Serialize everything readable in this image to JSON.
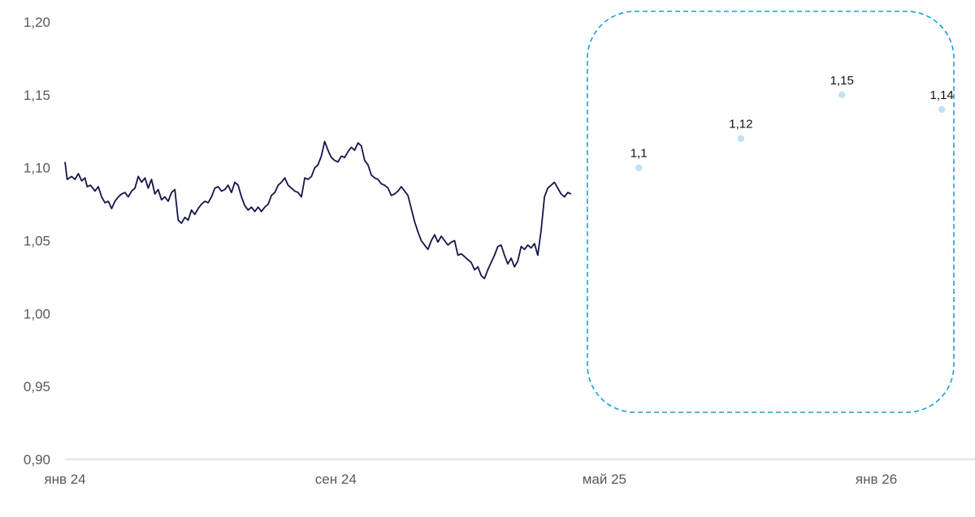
{
  "chart_data": {
    "type": "line",
    "title": "",
    "xlabel": "",
    "ylabel": "",
    "ylim": [
      0.9,
      1.2
    ],
    "y_ticks": [
      0.9,
      0.95,
      1.0,
      1.05,
      1.1,
      1.15,
      1.2
    ],
    "y_tick_labels": [
      "0,90",
      "0,95",
      "1,00",
      "1,05",
      "1,10",
      "1,15",
      "1,20"
    ],
    "x_range": [
      "2024-01-01",
      "2026-03-31"
    ],
    "x_ticks": [
      {
        "date": "2024-01-01",
        "label": "янв 24"
      },
      {
        "date": "2024-09-01",
        "label": "сен 24"
      },
      {
        "date": "2025-05-01",
        "label": "май 25"
      },
      {
        "date": "2026-01-01",
        "label": "янв 26"
      }
    ],
    "grid": false,
    "colors": {
      "history_line": "#15154a",
      "forecast_points": "#bfe3f3",
      "forecast_box": "#1a9fd8",
      "axis": "#c8c8c8",
      "tick_text": "#595959"
    },
    "series": [
      {
        "style": "line",
        "points": [
          [
            "2024-01-01",
            1.104
          ],
          [
            "2024-01-03",
            1.092
          ],
          [
            "2024-01-07",
            1.094
          ],
          [
            "2024-01-10",
            1.092
          ],
          [
            "2024-01-13",
            1.096
          ],
          [
            "2024-01-16",
            1.091
          ],
          [
            "2024-01-19",
            1.093
          ],
          [
            "2024-01-21",
            1.087
          ],
          [
            "2024-01-24",
            1.088
          ],
          [
            "2024-01-28",
            1.084
          ],
          [
            "2024-01-31",
            1.087
          ],
          [
            "2024-02-03",
            1.08
          ],
          [
            "2024-02-06",
            1.076
          ],
          [
            "2024-02-09",
            1.077
          ],
          [
            "2024-02-12",
            1.072
          ],
          [
            "2024-02-15",
            1.077
          ],
          [
            "2024-02-18",
            1.08
          ],
          [
            "2024-02-21",
            1.082
          ],
          [
            "2024-02-24",
            1.083
          ],
          [
            "2024-02-27",
            1.08
          ],
          [
            "2024-03-01",
            1.084
          ],
          [
            "2024-03-04",
            1.086
          ],
          [
            "2024-03-07",
            1.094
          ],
          [
            "2024-03-10",
            1.09
          ],
          [
            "2024-03-13",
            1.093
          ],
          [
            "2024-03-16",
            1.086
          ],
          [
            "2024-03-19",
            1.092
          ],
          [
            "2024-03-22",
            1.082
          ],
          [
            "2024-03-25",
            1.085
          ],
          [
            "2024-03-28",
            1.078
          ],
          [
            "2024-03-31",
            1.08
          ],
          [
            "2024-04-03",
            1.077
          ],
          [
            "2024-04-06",
            1.083
          ],
          [
            "2024-04-09",
            1.085
          ],
          [
            "2024-04-12",
            1.064
          ],
          [
            "2024-04-15",
            1.062
          ],
          [
            "2024-04-18",
            1.066
          ],
          [
            "2024-04-21",
            1.064
          ],
          [
            "2024-04-24",
            1.071
          ],
          [
            "2024-04-27",
            1.068
          ],
          [
            "2024-04-30",
            1.072
          ],
          [
            "2024-05-03",
            1.075
          ],
          [
            "2024-05-06",
            1.077
          ],
          [
            "2024-05-09",
            1.076
          ],
          [
            "2024-05-12",
            1.08
          ],
          [
            "2024-05-15",
            1.086
          ],
          [
            "2024-05-18",
            1.087
          ],
          [
            "2024-05-21",
            1.084
          ],
          [
            "2024-05-24",
            1.085
          ],
          [
            "2024-05-27",
            1.088
          ],
          [
            "2024-05-30",
            1.083
          ],
          [
            "2024-06-02",
            1.09
          ],
          [
            "2024-06-05",
            1.088
          ],
          [
            "2024-06-08",
            1.08
          ],
          [
            "2024-06-11",
            1.074
          ],
          [
            "2024-06-14",
            1.071
          ],
          [
            "2024-06-17",
            1.073
          ],
          [
            "2024-06-20",
            1.07
          ],
          [
            "2024-06-23",
            1.073
          ],
          [
            "2024-06-26",
            1.07
          ],
          [
            "2024-06-29",
            1.073
          ],
          [
            "2024-07-02",
            1.075
          ],
          [
            "2024-07-05",
            1.081
          ],
          [
            "2024-07-08",
            1.083
          ],
          [
            "2024-07-11",
            1.088
          ],
          [
            "2024-07-14",
            1.09
          ],
          [
            "2024-07-17",
            1.093
          ],
          [
            "2024-07-20",
            1.088
          ],
          [
            "2024-07-23",
            1.086
          ],
          [
            "2024-07-26",
            1.084
          ],
          [
            "2024-07-29",
            1.083
          ],
          [
            "2024-08-01",
            1.08
          ],
          [
            "2024-08-04",
            1.093
          ],
          [
            "2024-08-07",
            1.092
          ],
          [
            "2024-08-10",
            1.094
          ],
          [
            "2024-08-13",
            1.1
          ],
          [
            "2024-08-16",
            1.102
          ],
          [
            "2024-08-19",
            1.108
          ],
          [
            "2024-08-22",
            1.118
          ],
          [
            "2024-08-25",
            1.112
          ],
          [
            "2024-08-28",
            1.107
          ],
          [
            "2024-08-31",
            1.105
          ],
          [
            "2024-09-03",
            1.104
          ],
          [
            "2024-09-06",
            1.108
          ],
          [
            "2024-09-09",
            1.107
          ],
          [
            "2024-09-12",
            1.111
          ],
          [
            "2024-09-15",
            1.114
          ],
          [
            "2024-09-18",
            1.112
          ],
          [
            "2024-09-21",
            1.117
          ],
          [
            "2024-09-24",
            1.115
          ],
          [
            "2024-09-27",
            1.105
          ],
          [
            "2024-09-30",
            1.102
          ],
          [
            "2024-10-03",
            1.095
          ],
          [
            "2024-10-06",
            1.093
          ],
          [
            "2024-10-09",
            1.092
          ],
          [
            "2024-10-12",
            1.089
          ],
          [
            "2024-10-15",
            1.088
          ],
          [
            "2024-10-18",
            1.086
          ],
          [
            "2024-10-21",
            1.081
          ],
          [
            "2024-10-24",
            1.082
          ],
          [
            "2024-10-27",
            1.084
          ],
          [
            "2024-10-30",
            1.087
          ],
          [
            "2024-11-02",
            1.084
          ],
          [
            "2024-11-05",
            1.081
          ],
          [
            "2024-11-08",
            1.072
          ],
          [
            "2024-11-11",
            1.063
          ],
          [
            "2024-11-14",
            1.056
          ],
          [
            "2024-11-17",
            1.05
          ],
          [
            "2024-11-20",
            1.047
          ],
          [
            "2024-11-23",
            1.044
          ],
          [
            "2024-11-26",
            1.05
          ],
          [
            "2024-11-29",
            1.054
          ],
          [
            "2024-12-02",
            1.049
          ],
          [
            "2024-12-05",
            1.053
          ],
          [
            "2024-12-08",
            1.05
          ],
          [
            "2024-12-11",
            1.047
          ],
          [
            "2024-12-14",
            1.049
          ],
          [
            "2024-12-17",
            1.05
          ],
          [
            "2024-12-20",
            1.04
          ],
          [
            "2024-12-23",
            1.041
          ],
          [
            "2024-12-26",
            1.039
          ],
          [
            "2024-12-29",
            1.037
          ],
          [
            "2025-01-01",
            1.035
          ],
          [
            "2025-01-04",
            1.03
          ],
          [
            "2025-01-07",
            1.032
          ],
          [
            "2025-01-10",
            1.026
          ],
          [
            "2025-01-13",
            1.024
          ],
          [
            "2025-01-16",
            1.03
          ],
          [
            "2025-01-19",
            1.035
          ],
          [
            "2025-01-22",
            1.04
          ],
          [
            "2025-01-25",
            1.046
          ],
          [
            "2025-01-28",
            1.047
          ],
          [
            "2025-01-31",
            1.04
          ],
          [
            "2025-02-03",
            1.034
          ],
          [
            "2025-02-06",
            1.038
          ],
          [
            "2025-02-09",
            1.032
          ],
          [
            "2025-02-12",
            1.036
          ],
          [
            "2025-02-15",
            1.046
          ],
          [
            "2025-02-18",
            1.044
          ],
          [
            "2025-02-21",
            1.047
          ],
          [
            "2025-02-24",
            1.045
          ],
          [
            "2025-02-27",
            1.048
          ],
          [
            "2025-03-02",
            1.04
          ],
          [
            "2025-03-05",
            1.057
          ],
          [
            "2025-03-08",
            1.08
          ],
          [
            "2025-03-11",
            1.086
          ],
          [
            "2025-03-14",
            1.088
          ],
          [
            "2025-03-17",
            1.09
          ],
          [
            "2025-03-20",
            1.086
          ],
          [
            "2025-03-23",
            1.082
          ],
          [
            "2025-03-26",
            1.08
          ],
          [
            "2025-03-29",
            1.083
          ],
          [
            "2025-04-01",
            1.082
          ]
        ]
      },
      {
        "style": "points",
        "points": [
          [
            "2025-06-01",
            1.1
          ],
          [
            "2025-09-01",
            1.12
          ],
          [
            "2025-12-01",
            1.15
          ],
          [
            "2026-03-01",
            1.14
          ]
        ],
        "data_labels": [
          "1,1",
          "1,12",
          "1,15",
          "1,14"
        ]
      }
    ]
  }
}
